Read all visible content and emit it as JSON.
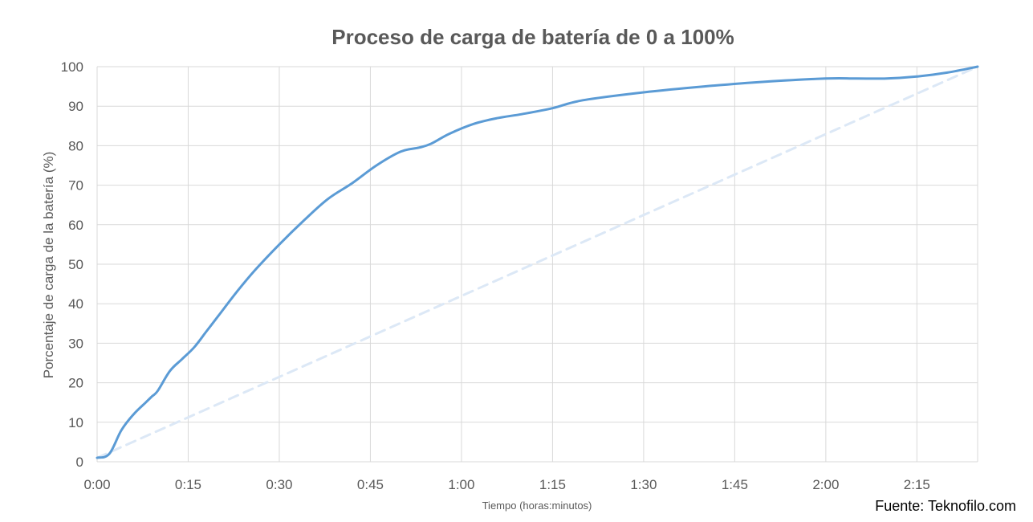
{
  "chart_data": {
    "type": "line",
    "title": "Proceso de carga de batería de 0 a 100%",
    "xlabel": "Tiempo (horas:minutos)",
    "ylabel": "Porcentaje de carga de la batería (%)",
    "source": "Fuente: Teknofilo.com",
    "xlim": [
      0,
      145
    ],
    "ylim": [
      0,
      100
    ],
    "x_tick_values": [
      0,
      15,
      30,
      45,
      60,
      75,
      90,
      105,
      120,
      135
    ],
    "x_tick_labels": [
      "0:00",
      "0:15",
      "0:30",
      "0:45",
      "1:00",
      "1:15",
      "1:30",
      "1:45",
      "2:00",
      "2:15"
    ],
    "y_ticks": [
      0,
      10,
      20,
      30,
      40,
      50,
      60,
      70,
      80,
      90,
      100
    ],
    "grid": true,
    "series": [
      {
        "color": "#5b9bd5",
        "style": "solid",
        "x": [
          0,
          2,
          4,
          6,
          8,
          9,
          10,
          12,
          14,
          16,
          18,
          20,
          23,
          26,
          30,
          34,
          38,
          42,
          46,
          50,
          53,
          55,
          58,
          62,
          66,
          70,
          75,
          80,
          90,
          100,
          110,
          120,
          125,
          130,
          135,
          140,
          145
        ],
        "values": [
          1,
          2,
          8,
          12,
          15,
          16.5,
          18,
          23,
          26,
          29,
          33,
          37,
          43,
          48.5,
          55,
          61,
          66.5,
          70.5,
          75,
          78.5,
          79.5,
          80.5,
          83,
          85.5,
          87,
          88,
          89.5,
          91.5,
          93.5,
          95,
          96.2,
          97,
          97,
          97,
          97.5,
          98.5,
          100
        ]
      },
      {
        "color": "#dce8f6",
        "style": "dashed",
        "x": [
          0,
          145
        ],
        "values": [
          1,
          100
        ]
      }
    ]
  }
}
